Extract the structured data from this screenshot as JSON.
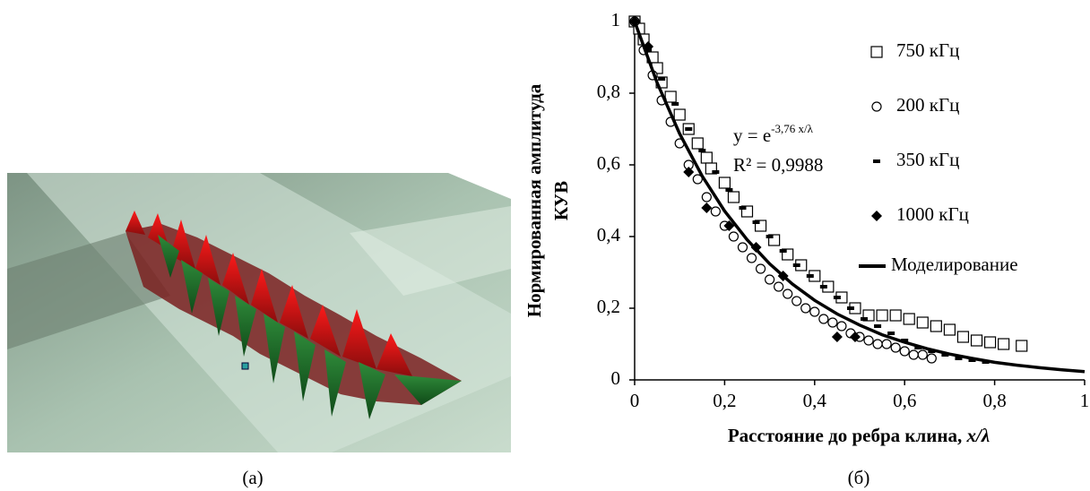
{
  "figure_labels": [
    "(а)",
    "(б)"
  ],
  "chart_data": {
    "type": "scatter",
    "ylabel": [
      "Нормированная амплитуда",
      "КУВ"
    ],
    "xlabel": [
      "Расстояние до ребра клина, ",
      "x/λ"
    ],
    "equation": {
      "base": "y = e",
      "exponent": "-3,76 x/λ",
      "r2": "R² = 0,9988"
    },
    "xlim": [
      0,
      1
    ],
    "ylim": [
      0,
      1
    ],
    "xticks": [
      0,
      {
        "value": 0.2,
        "label": "0,2"
      },
      {
        "value": 0.4,
        "label": "0,4"
      },
      {
        "value": 0.6,
        "label": "0,6"
      },
      {
        "value": 0.8,
        "label": "0,8"
      },
      1
    ],
    "yticks": [
      0,
      {
        "value": 0.2,
        "label": "0,2"
      },
      {
        "value": 0.4,
        "label": "0,4"
      },
      {
        "value": 0.6,
        "label": "0,6"
      },
      {
        "value": 0.8,
        "label": "0,8"
      },
      1
    ],
    "series": [
      {
        "name": "750 кГц",
        "marker": "square-open",
        "color": "#000000",
        "x": [
          0,
          0.01,
          0.02,
          0.04,
          0.05,
          0.06,
          0.08,
          0.1,
          0.12,
          0.14,
          0.16,
          0.17,
          0.2,
          0.22,
          0.25,
          0.28,
          0.31,
          0.34,
          0.37,
          0.4,
          0.43,
          0.46,
          0.49,
          0.52,
          0.55,
          0.58,
          0.61,
          0.64,
          0.67,
          0.7,
          0.73,
          0.76,
          0.79,
          0.82,
          0.86
        ],
        "values": [
          1,
          0.98,
          0.95,
          0.9,
          0.87,
          0.83,
          0.79,
          0.74,
          0.7,
          0.66,
          0.62,
          0.59,
          0.55,
          0.51,
          0.47,
          0.43,
          0.39,
          0.35,
          0.32,
          0.29,
          0.26,
          0.23,
          0.2,
          0.18,
          0.18,
          0.18,
          0.17,
          0.16,
          0.15,
          0.14,
          0.12,
          0.11,
          0.105,
          0.1,
          0.095
        ]
      },
      {
        "name": "200 кГц",
        "marker": "circle-open",
        "color": "#000000",
        "x": [
          0,
          0.02,
          0.04,
          0.06,
          0.08,
          0.1,
          0.12,
          0.14,
          0.16,
          0.18,
          0.2,
          0.22,
          0.24,
          0.26,
          0.28,
          0.3,
          0.32,
          0.34,
          0.36,
          0.38,
          0.4,
          0.42,
          0.44,
          0.46,
          0.48,
          0.5,
          0.52,
          0.54,
          0.56,
          0.58,
          0.6,
          0.62,
          0.64,
          0.66
        ],
        "values": [
          1,
          0.92,
          0.85,
          0.78,
          0.72,
          0.66,
          0.6,
          0.56,
          0.51,
          0.47,
          0.43,
          0.4,
          0.37,
          0.34,
          0.31,
          0.28,
          0.26,
          0.24,
          0.22,
          0.2,
          0.19,
          0.17,
          0.16,
          0.15,
          0.13,
          0.12,
          0.11,
          0.1,
          0.1,
          0.09,
          0.08,
          0.07,
          0.07,
          0.06
        ]
      },
      {
        "name": "350 кГц",
        "marker": "dash",
        "color": "#000000",
        "x": [
          0,
          0.03,
          0.06,
          0.09,
          0.12,
          0.15,
          0.18,
          0.21,
          0.24,
          0.27,
          0.3,
          0.33,
          0.36,
          0.39,
          0.42,
          0.45,
          0.48,
          0.51,
          0.54,
          0.57,
          0.6,
          0.63,
          0.66,
          0.69,
          0.72,
          0.75,
          0.78
        ],
        "values": [
          1,
          0.92,
          0.84,
          0.77,
          0.7,
          0.64,
          0.58,
          0.53,
          0.48,
          0.44,
          0.4,
          0.36,
          0.32,
          0.29,
          0.26,
          0.23,
          0.2,
          0.17,
          0.15,
          0.13,
          0.11,
          0.09,
          0.08,
          0.07,
          0.06,
          0.055,
          0.05
        ]
      },
      {
        "name": "1000 кГц",
        "marker": "diamond",
        "color": "#000000",
        "x": [
          0,
          0.03,
          0.12,
          0.16,
          0.21,
          0.27,
          0.33,
          0.45,
          0.49
        ],
        "values": [
          1,
          0.93,
          0.58,
          0.48,
          0.43,
          0.37,
          0.29,
          0.12,
          0.12
        ]
      },
      {
        "name": "Моделирование",
        "marker": "line",
        "color": "#000000",
        "x": [
          0,
          0.05,
          0.1,
          0.15,
          0.2,
          0.25,
          0.3,
          0.35,
          0.4,
          0.45,
          0.5,
          0.55,
          0.6,
          0.65,
          0.7,
          0.75,
          0.8,
          0.85,
          0.9,
          0.95,
          1
        ],
        "values": [
          1,
          0.829,
          0.687,
          0.569,
          0.471,
          0.391,
          0.324,
          0.268,
          0.222,
          0.184,
          0.153,
          0.126,
          0.105,
          0.087,
          0.072,
          0.06,
          0.049,
          0.041,
          0.034,
          0.028,
          0.023
        ]
      }
    ]
  }
}
